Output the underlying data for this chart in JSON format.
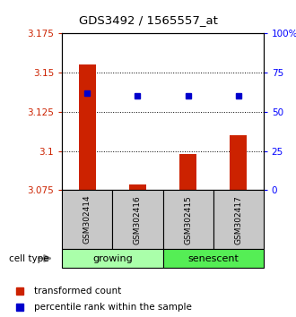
{
  "title": "GDS3492 / 1565557_at",
  "samples": [
    "GSM302414",
    "GSM302416",
    "GSM302415",
    "GSM302417"
  ],
  "red_values": [
    3.155,
    3.0785,
    3.098,
    3.11
  ],
  "blue_values": [
    62,
    60,
    60,
    60
  ],
  "ylim_left": [
    3.075,
    3.175
  ],
  "ylim_right": [
    0,
    100
  ],
  "yticks_left": [
    3.075,
    3.1,
    3.125,
    3.15,
    3.175
  ],
  "yticks_right": [
    0,
    25,
    50,
    75,
    100
  ],
  "ytick_labels_right": [
    "0",
    "25",
    "50",
    "75",
    "100%"
  ],
  "groups": [
    {
      "label": "growing",
      "samples": [
        0,
        1
      ],
      "color": "#aaffaa"
    },
    {
      "label": "senescent",
      "samples": [
        2,
        3
      ],
      "color": "#55ee55"
    }
  ],
  "bar_color": "#cc2200",
  "dot_color": "#0000cc",
  "bg_color": "#c8c8c8",
  "legend_red_label": "transformed count",
  "legend_blue_label": "percentile rank within the sample",
  "cell_type_label": "cell type"
}
